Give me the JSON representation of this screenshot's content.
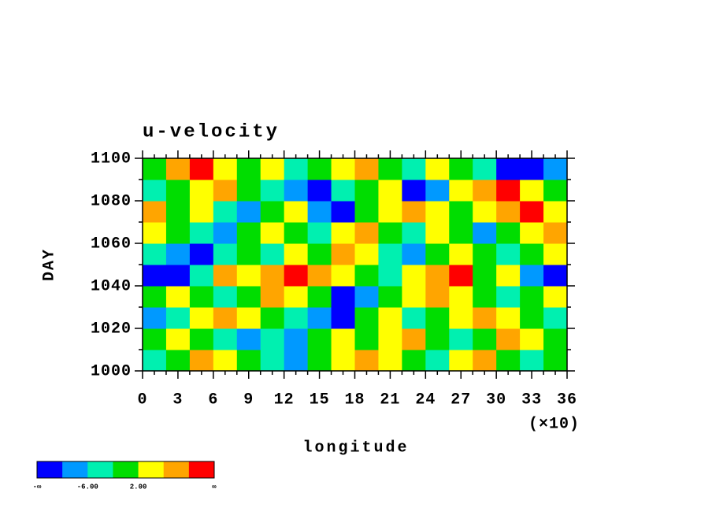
{
  "chart_data": {
    "type": "heatmap",
    "title": "u-velocity",
    "xlabel": "longitude",
    "ylabel": "DAY",
    "x_multiplier": "(×10)",
    "x": [
      1,
      3,
      5,
      7,
      9,
      11,
      13,
      15,
      17,
      19,
      21,
      23,
      25,
      27,
      29,
      31,
      33,
      35
    ],
    "y": [
      1005,
      1015,
      1025,
      1035,
      1045,
      1055,
      1065,
      1075,
      1085,
      1095
    ],
    "z": [
      [
        -4,
        0,
        8,
        4,
        0,
        -4,
        -8,
        0,
        4,
        8,
        4,
        0,
        -4,
        4,
        8,
        0,
        -4,
        0
      ],
      [
        0,
        4,
        0,
        -4,
        -8,
        -4,
        -8,
        0,
        4,
        0,
        4,
        8,
        0,
        -4,
        0,
        8,
        4,
        0
      ],
      [
        -8,
        -4,
        4,
        8,
        4,
        0,
        -4,
        -8,
        -12,
        0,
        4,
        -4,
        0,
        4,
        8,
        4,
        0,
        -4
      ],
      [
        0,
        4,
        0,
        -4,
        0,
        8,
        4,
        0,
        -12,
        -8,
        0,
        4,
        8,
        4,
        0,
        -4,
        0,
        4
      ],
      [
        -12,
        -12,
        -4,
        8,
        4,
        8,
        12,
        8,
        4,
        0,
        -4,
        4,
        8,
        12,
        0,
        4,
        -8,
        -12
      ],
      [
        -4,
        -8,
        -12,
        -4,
        0,
        -4,
        4,
        0,
        8,
        4,
        -4,
        -8,
        0,
        4,
        0,
        -4,
        0,
        4
      ],
      [
        4,
        0,
        -4,
        -8,
        0,
        4,
        0,
        -4,
        4,
        8,
        0,
        -4,
        4,
        0,
        -8,
        0,
        4,
        8
      ],
      [
        8,
        0,
        4,
        -4,
        -8,
        0,
        4,
        -8,
        -12,
        0,
        4,
        8,
        4,
        0,
        4,
        8,
        12,
        4
      ],
      [
        -4,
        0,
        4,
        8,
        0,
        -4,
        -8,
        -12,
        -4,
        0,
        4,
        -12,
        -8,
        4,
        8,
        12,
        4,
        0
      ],
      [
        0,
        8,
        12,
        4,
        0,
        4,
        -4,
        0,
        4,
        8,
        0,
        -4,
        4,
        0,
        -4,
        -12,
        -12,
        -8
      ]
    ],
    "xlim": [
      0,
      36
    ],
    "ylim": [
      1000,
      1100
    ],
    "xticks": [
      0,
      3,
      6,
      9,
      12,
      15,
      18,
      21,
      24,
      27,
      30,
      33,
      36
    ],
    "yticks": [
      1000,
      1020,
      1040,
      1060,
      1080,
      1100
    ],
    "colorbar": {
      "colors": [
        "#0000ff",
        "#0099ff",
        "#00f0b0",
        "#00dd00",
        "#ffff00",
        "#ffa500",
        "#ff0000"
      ],
      "levels": [
        -10,
        -6,
        -2,
        2,
        6,
        10
      ],
      "labels": [
        {
          "value": -6,
          "label": "-6.00"
        },
        {
          "value": 2,
          "label": "2.00"
        }
      ],
      "min_label": "-∞",
      "max_label": "∞"
    }
  }
}
